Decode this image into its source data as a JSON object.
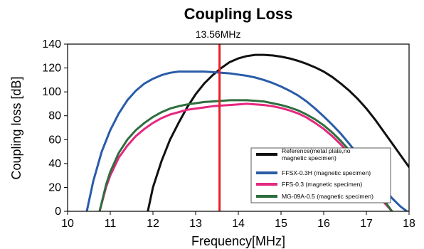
{
  "chart_data": {
    "type": "line",
    "title": "Coupling Loss",
    "xlabel": "Frequency[MHz]",
    "ylabel": "Coupling loss [dB]",
    "xlim": [
      10,
      18
    ],
    "ylim": [
      0,
      140
    ],
    "x_ticks": [
      "10",
      "11",
      "12",
      "13",
      "14",
      "15",
      "16",
      "17",
      "18"
    ],
    "y_ticks": [
      "0",
      "20",
      "40",
      "60",
      "80",
      "100",
      "120",
      "140"
    ],
    "grid": false,
    "legend_position": "lower-right",
    "marker": {
      "x": 13.56,
      "label": "13.56MHz",
      "color": "#e8202a"
    },
    "series": [
      {
        "name": "Reference(metal plate,no magnetic specimen)",
        "color": "#111111",
        "x": [
          11.88,
          12.0,
          12.2,
          12.4,
          12.6,
          12.8,
          13.0,
          13.2,
          13.4,
          13.6,
          13.8,
          14.0,
          14.2,
          14.4,
          14.6,
          14.8,
          15.0,
          15.2,
          15.4,
          15.6,
          15.8,
          16.0,
          16.2,
          16.4,
          16.6,
          16.8,
          17.0,
          17.2,
          17.4,
          17.6,
          17.8,
          18.0
        ],
        "y": [
          0,
          20,
          42,
          60,
          74,
          87,
          98,
          107,
          114,
          120,
          125,
          128,
          130,
          131,
          131,
          130.5,
          129.5,
          128,
          126,
          123.5,
          120.5,
          117,
          112.5,
          107,
          101,
          94,
          86,
          77,
          67,
          57,
          47,
          37
        ]
      },
      {
        "name": "FFSX-0.3H (magnetic specimen)",
        "color": "#2a5ca8",
        "x": [
          10.45,
          10.6,
          10.8,
          11.0,
          11.2,
          11.4,
          11.6,
          11.8,
          12.0,
          12.2,
          12.4,
          12.6,
          12.8,
          13.0,
          13.2,
          13.4,
          13.6,
          13.8,
          14.0,
          14.2,
          14.4,
          14.6,
          14.8,
          15.0,
          15.2,
          15.4,
          15.6,
          15.8,
          16.0,
          16.2,
          16.4,
          16.6,
          16.8,
          17.0,
          17.2,
          17.4,
          17.6,
          17.8,
          17.95
        ],
        "y": [
          0,
          25,
          50,
          68,
          82,
          93,
          101,
          107,
          111,
          114,
          116,
          117,
          117,
          117,
          117,
          116.5,
          116,
          115.5,
          114.5,
          113.5,
          112,
          110,
          107.5,
          104.5,
          101,
          97,
          92,
          86,
          79.5,
          72.5,
          65,
          56.5,
          47.5,
          38,
          29,
          20,
          11,
          4,
          0
        ]
      },
      {
        "name": "FFS-0.3 (magnetic specimen)",
        "color": "#e5287f",
        "x": [
          10.75,
          10.9,
          11.0,
          11.2,
          11.4,
          11.6,
          11.8,
          12.0,
          12.2,
          12.4,
          12.6,
          12.8,
          13.0,
          13.2,
          13.4,
          13.6,
          13.8,
          14.0,
          14.2,
          14.4,
          14.6,
          14.8,
          15.0,
          15.2,
          15.4,
          15.6,
          15.8,
          16.0,
          16.2,
          16.4,
          16.6,
          16.8,
          17.0,
          17.2,
          17.4,
          17.6
        ],
        "y": [
          0,
          20,
          30,
          45,
          55,
          63,
          69,
          74,
          78,
          81,
          83,
          85,
          86,
          87,
          88,
          88.5,
          89,
          89.5,
          90,
          89.5,
          89,
          88,
          86.5,
          84.5,
          82,
          78.5,
          74,
          69,
          63,
          56,
          48,
          39,
          29,
          18,
          8,
          0
        ]
      },
      {
        "name": "MG-09A-0.5 (magnetic specimen)",
        "color": "#2e6e3e",
        "x": [
          10.75,
          10.9,
          11.0,
          11.2,
          11.4,
          11.6,
          11.8,
          12.0,
          12.2,
          12.4,
          12.6,
          12.8,
          13.0,
          13.2,
          13.4,
          13.6,
          13.8,
          14.0,
          14.2,
          14.4,
          14.6,
          14.8,
          15.0,
          15.2,
          15.4,
          15.6,
          15.8,
          16.0,
          16.2,
          16.4,
          16.6,
          16.8,
          17.0,
          17.2,
          17.4,
          17.6
        ],
        "y": [
          0,
          22,
          33,
          49,
          60,
          68,
          74,
          79,
          83,
          86,
          88,
          89.5,
          90.5,
          91.5,
          92,
          92.5,
          93,
          93,
          93,
          92.5,
          92,
          90.5,
          89,
          87,
          84.5,
          81,
          77,
          72,
          66,
          59,
          51,
          42,
          32,
          21,
          10,
          0
        ]
      }
    ]
  }
}
